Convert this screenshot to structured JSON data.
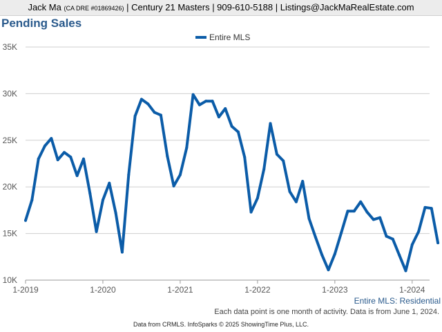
{
  "header": {
    "agent": "Jack Ma",
    "license": "(CA DRE #01869426)",
    "rest": "| Century 21 Masters | 909-610-5188 | Listings@JackMaRealEstate.com"
  },
  "series_tag": "Entire MLS: Residential",
  "footnote": "Each data point is one month of activity. Data is from June 1, 2024.",
  "source_note": "Data from CRMLS. InfoSparks © 2025 ShowingTime Plus, LLC.",
  "colors": {
    "series": "#0b5ca8",
    "title": "#2a5a8c",
    "grid": "#cfcfcf"
  },
  "chart_data": {
    "type": "line",
    "title": "Pending Sales",
    "xlabel": "",
    "ylabel": "",
    "x_ticks": [
      "1-2019",
      "1-2020",
      "1-2021",
      "1-2022",
      "1-2023",
      "1-2024"
    ],
    "y_ticks": [
      "10K",
      "15K",
      "20K",
      "25K",
      "30K",
      "35K"
    ],
    "ylim": [
      10000,
      35000
    ],
    "grid": true,
    "legend_position": "top-center",
    "x": [
      "2019-01",
      "2019-02",
      "2019-03",
      "2019-04",
      "2019-05",
      "2019-06",
      "2019-07",
      "2019-08",
      "2019-09",
      "2019-10",
      "2019-11",
      "2019-12",
      "2020-01",
      "2020-02",
      "2020-03",
      "2020-04",
      "2020-05",
      "2020-06",
      "2020-07",
      "2020-08",
      "2020-09",
      "2020-10",
      "2020-11",
      "2020-12",
      "2021-01",
      "2021-02",
      "2021-03",
      "2021-04",
      "2021-05",
      "2021-06",
      "2021-07",
      "2021-08",
      "2021-09",
      "2021-10",
      "2021-11",
      "2021-12",
      "2022-01",
      "2022-02",
      "2022-03",
      "2022-04",
      "2022-05",
      "2022-06",
      "2022-07",
      "2022-08",
      "2022-09",
      "2022-10",
      "2022-11",
      "2022-12",
      "2023-01",
      "2023-02",
      "2023-03",
      "2023-04",
      "2023-05",
      "2023-06",
      "2023-07",
      "2023-08",
      "2023-09",
      "2023-10",
      "2023-11",
      "2023-12",
      "2024-01",
      "2024-02",
      "2024-03",
      "2024-04",
      "2024-05"
    ],
    "series": [
      {
        "name": "Entire MLS",
        "values": [
          16400,
          18600,
          23000,
          24400,
          25200,
          22900,
          23700,
          23200,
          21200,
          23000,
          19300,
          15200,
          18600,
          20400,
          17200,
          13000,
          21300,
          27600,
          29400,
          28900,
          28000,
          27700,
          23300,
          20100,
          21300,
          24200,
          29900,
          28800,
          29200,
          29200,
          27500,
          28400,
          26500,
          25900,
          23200,
          17300,
          18800,
          21900,
          26800,
          23500,
          22800,
          19500,
          18400,
          20600,
          16600,
          14600,
          12700,
          11100,
          12800,
          15100,
          17400,
          17400,
          18400,
          17300,
          16500,
          16700,
          14700,
          14400,
          12700,
          11000,
          13800,
          15200,
          17800,
          17700,
          14000
        ]
      }
    ]
  }
}
